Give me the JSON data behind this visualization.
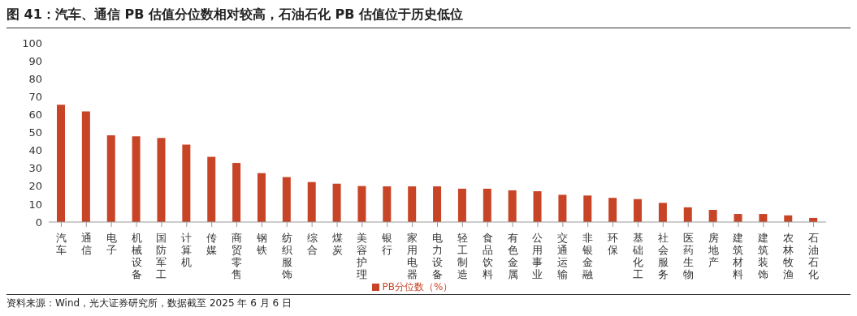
{
  "chart_data": {
    "type": "bar",
    "title": "图 41：汽车、通信 PB 估值分位数相对较高，石油石化 PB 估值位于历史低位",
    "categories": [
      "汽车",
      "通信",
      "电子",
      "机械设备",
      "国防军工",
      "计算机",
      "传媒",
      "商贸零售",
      "钢铁",
      "纺织服饰",
      "综合",
      "煤炭",
      "美容护理",
      "银行",
      "家用电器",
      "电力设备",
      "轻工制造",
      "食品饮料",
      "有色金属",
      "公用事业",
      "交通运输",
      "非银金融",
      "环保",
      "基础化工",
      "社会服务",
      "医药生物",
      "房地产",
      "建筑材料",
      "建筑装饰",
      "农林牧渔",
      "石油石化"
    ],
    "series": [
      {
        "name": "PB分位数（%）",
        "color": "#c84426",
        "values": [
          65.5,
          61.8,
          48.4,
          47.9,
          46.9,
          43.2,
          36.4,
          33,
          27.3,
          25.1,
          22.3,
          21.4,
          20.1,
          19.9,
          19.9,
          19.9,
          18.6,
          18.6,
          17.7,
          17.2,
          15.2,
          14.8,
          13.5,
          12.8,
          10.7,
          8.2,
          6.8,
          4.5,
          4.5,
          3.7,
          2.3
        ]
      }
    ],
    "ylim": [
      0,
      100
    ],
    "yticks": [
      0,
      10,
      20,
      30,
      40,
      50,
      60,
      70,
      80,
      90,
      100
    ],
    "grid": false,
    "legend": "bottom",
    "annotations": [
      "资料来源：Wind，光大证券研究所，数据截至 2025 年 6 月 6 日"
    ]
  }
}
